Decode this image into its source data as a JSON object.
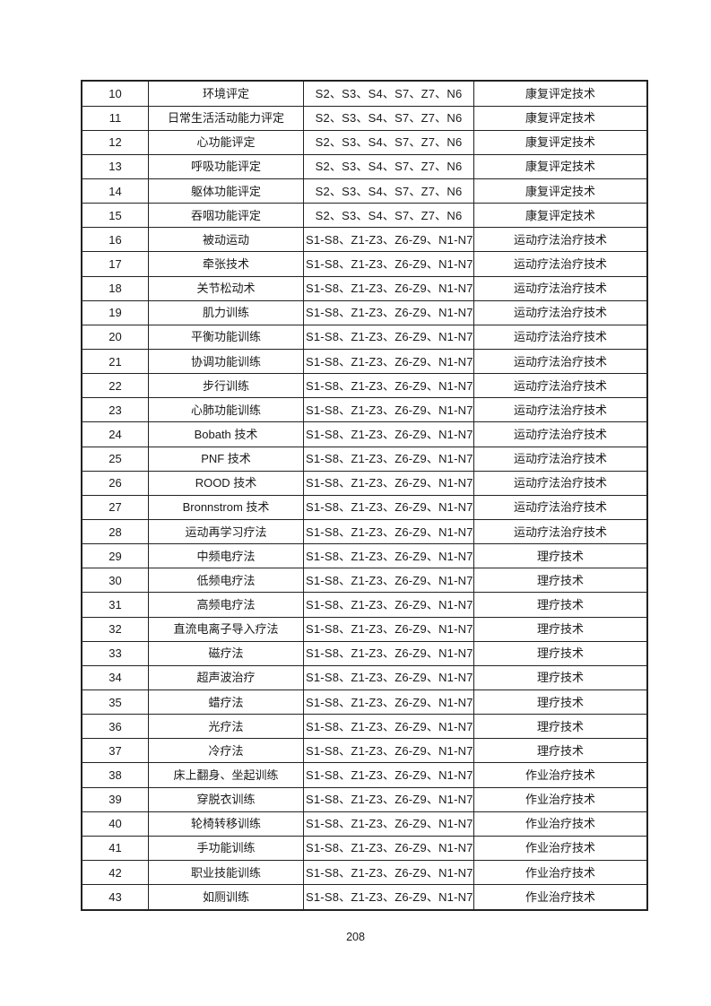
{
  "page": {
    "number": "208"
  },
  "table": {
    "rows": [
      {
        "no": "10",
        "name": "环境评定",
        "codes": "S2、S3、S4、S7、Z7、N6",
        "category": "康复评定技术"
      },
      {
        "no": "11",
        "name": "日常生活活动能力评定",
        "codes": "S2、S3、S4、S7、Z7、N6",
        "category": "康复评定技术"
      },
      {
        "no": "12",
        "name": "心功能评定",
        "codes": "S2、S3、S4、S7、Z7、N6",
        "category": "康复评定技术"
      },
      {
        "no": "13",
        "name": "呼吸功能评定",
        "codes": "S2、S3、S4、S7、Z7、N6",
        "category": "康复评定技术"
      },
      {
        "no": "14",
        "name": "躯体功能评定",
        "codes": "S2、S3、S4、S7、Z7、N6",
        "category": "康复评定技术"
      },
      {
        "no": "15",
        "name": "吞咽功能评定",
        "codes": "S2、S3、S4、S7、Z7、N6",
        "category": "康复评定技术"
      },
      {
        "no": "16",
        "name": "被动运动",
        "codes": "S1-S8、Z1-Z3、Z6-Z9、N1-N7",
        "category": "运动疗法治疗技术"
      },
      {
        "no": "17",
        "name": "牵张技术",
        "codes": "S1-S8、Z1-Z3、Z6-Z9、N1-N7",
        "category": "运动疗法治疗技术"
      },
      {
        "no": "18",
        "name": "关节松动术",
        "codes": "S1-S8、Z1-Z3、Z6-Z9、N1-N7",
        "category": "运动疗法治疗技术"
      },
      {
        "no": "19",
        "name": "肌力训练",
        "codes": "S1-S8、Z1-Z3、Z6-Z9、N1-N7",
        "category": "运动疗法治疗技术"
      },
      {
        "no": "20",
        "name": "平衡功能训练",
        "codes": "S1-S8、Z1-Z3、Z6-Z9、N1-N7",
        "category": "运动疗法治疗技术"
      },
      {
        "no": "21",
        "name": "协调功能训练",
        "codes": "S1-S8、Z1-Z3、Z6-Z9、N1-N7",
        "category": "运动疗法治疗技术"
      },
      {
        "no": "22",
        "name": "步行训练",
        "codes": "S1-S8、Z1-Z3、Z6-Z9、N1-N7",
        "category": "运动疗法治疗技术"
      },
      {
        "no": "23",
        "name": "心肺功能训练",
        "codes": "S1-S8、Z1-Z3、Z6-Z9、N1-N7",
        "category": "运动疗法治疗技术"
      },
      {
        "no": "24",
        "name": "Bobath 技术",
        "codes": "S1-S8、Z1-Z3、Z6-Z9、N1-N7",
        "category": "运动疗法治疗技术"
      },
      {
        "no": "25",
        "name": "PNF 技术",
        "codes": "S1-S8、Z1-Z3、Z6-Z9、N1-N7",
        "category": "运动疗法治疗技术"
      },
      {
        "no": "26",
        "name": "ROOD 技术",
        "codes": "S1-S8、Z1-Z3、Z6-Z9、N1-N7",
        "category": "运动疗法治疗技术"
      },
      {
        "no": "27",
        "name": "Bronnstrom 技术",
        "codes": "S1-S8、Z1-Z3、Z6-Z9、N1-N7",
        "category": "运动疗法治疗技术"
      },
      {
        "no": "28",
        "name": "运动再学习疗法",
        "codes": "S1-S8、Z1-Z3、Z6-Z9、N1-N7",
        "category": "运动疗法治疗技术"
      },
      {
        "no": "29",
        "name": "中频电疗法",
        "codes": "S1-S8、Z1-Z3、Z6-Z9、N1-N7",
        "category": "理疗技术"
      },
      {
        "no": "30",
        "name": "低频电疗法",
        "codes": "S1-S8、Z1-Z3、Z6-Z9、N1-N7",
        "category": "理疗技术"
      },
      {
        "no": "31",
        "name": "高频电疗法",
        "codes": "S1-S8、Z1-Z3、Z6-Z9、N1-N7",
        "category": "理疗技术"
      },
      {
        "no": "32",
        "name": "直流电离子导入疗法",
        "codes": "S1-S8、Z1-Z3、Z6-Z9、N1-N7",
        "category": "理疗技术"
      },
      {
        "no": "33",
        "name": "磁疗法",
        "codes": "S1-S8、Z1-Z3、Z6-Z9、N1-N7",
        "category": "理疗技术"
      },
      {
        "no": "34",
        "name": "超声波治疗",
        "codes": "S1-S8、Z1-Z3、Z6-Z9、N1-N7",
        "category": "理疗技术"
      },
      {
        "no": "35",
        "name": "蜡疗法",
        "codes": "S1-S8、Z1-Z3、Z6-Z9、N1-N7",
        "category": "理疗技术"
      },
      {
        "no": "36",
        "name": "光疗法",
        "codes": "S1-S8、Z1-Z3、Z6-Z9、N1-N7",
        "category": "理疗技术"
      },
      {
        "no": "37",
        "name": "冷疗法",
        "codes": "S1-S8、Z1-Z3、Z6-Z9、N1-N7",
        "category": "理疗技术"
      },
      {
        "no": "38",
        "name": "床上翻身、坐起训练",
        "codes": "S1-S8、Z1-Z3、Z6-Z9、N1-N7",
        "category": "作业治疗技术"
      },
      {
        "no": "39",
        "name": "穿脱衣训练",
        "codes": "S1-S8、Z1-Z3、Z6-Z9、N1-N7",
        "category": "作业治疗技术"
      },
      {
        "no": "40",
        "name": "轮椅转移训练",
        "codes": "S1-S8、Z1-Z3、Z6-Z9、N1-N7",
        "category": "作业治疗技术"
      },
      {
        "no": "41",
        "name": "手功能训练",
        "codes": "S1-S8、Z1-Z3、Z6-Z9、N1-N7",
        "category": "作业治疗技术"
      },
      {
        "no": "42",
        "name": "职业技能训练",
        "codes": "S1-S8、Z1-Z3、Z6-Z9、N1-N7",
        "category": "作业治疗技术"
      },
      {
        "no": "43",
        "name": "如厕训练",
        "codes": "S1-S8、Z1-Z3、Z6-Z9、N1-N7",
        "category": "作业治疗技术"
      }
    ]
  }
}
